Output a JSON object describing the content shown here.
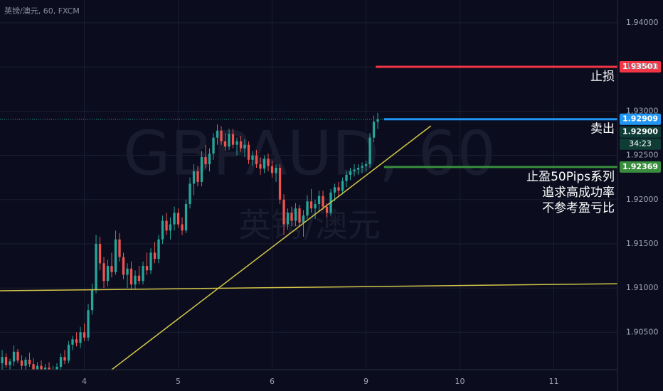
{
  "chart_data": {
    "type": "candlestick",
    "header": "英镑/澳元, 60, FXCM",
    "watermark": "GBPAUD, 60",
    "watermark_sub": "英镑/澳元",
    "up_color": "#26a69a",
    "down_color": "#ef5350",
    "xlim": [
      -0.55,
      157.27
    ],
    "xticks": [
      {
        "value": 21,
        "label": "4"
      },
      {
        "value": 45,
        "label": "5"
      },
      {
        "value": 69,
        "label": "6"
      },
      {
        "value": 93,
        "label": "9"
      },
      {
        "value": 117,
        "label": "10"
      },
      {
        "value": 141,
        "label": "11"
      }
    ],
    "ylim": [
      1.90077,
      1.94257
    ],
    "yticks": [
      {
        "value": 1.905,
        "label": "1.90500"
      },
      {
        "value": 1.91,
        "label": "1.91000"
      },
      {
        "value": 1.915,
        "label": "1.91500"
      },
      {
        "value": 1.92,
        "label": "1.92000"
      },
      {
        "value": 1.925,
        "label": "1.92500"
      },
      {
        "value": 1.93,
        "label": "1.93000"
      },
      {
        "value": 1.935,
        "label": "1.93500"
      },
      {
        "value": 1.94,
        "label": "1.94000"
      }
    ],
    "grid": true,
    "ohlc": [
      [
        1.9015,
        1.903,
        1.9008,
        1.9022
      ],
      [
        1.9022,
        1.9026,
        1.901,
        1.9013
      ],
      [
        1.9013,
        1.902,
        1.9005,
        1.9017
      ],
      [
        1.9017,
        1.9035,
        1.9012,
        1.9028
      ],
      [
        1.9028,
        1.9031,
        1.9015,
        1.9018
      ],
      [
        1.9018,
        1.9024,
        1.9008,
        1.9012
      ],
      [
        1.9012,
        1.9022,
        1.9006,
        1.9019
      ],
      [
        1.9019,
        1.9027,
        1.9011,
        1.9014
      ],
      [
        1.9014,
        1.9021,
        1.9003,
        1.9008
      ],
      [
        1.9008,
        1.9016,
        1.9,
        1.9012
      ],
      [
        1.9012,
        1.9018,
        1.9002,
        1.9005
      ],
      [
        1.9005,
        1.9014,
        1.8998,
        1.901
      ],
      [
        1.901,
        1.9016,
        1.9001,
        1.9004
      ],
      [
        1.9004,
        1.9012,
        1.8996,
        1.9008
      ],
      [
        1.9008,
        1.9015,
        1.9,
        1.9011
      ],
      [
        1.9011,
        1.9026,
        1.9006,
        1.9022
      ],
      [
        1.9022,
        1.903,
        1.9014,
        1.9018
      ],
      [
        1.9018,
        1.904,
        1.9015,
        1.9036
      ],
      [
        1.9036,
        1.9046,
        1.903,
        1.9042
      ],
      [
        1.9042,
        1.905,
        1.9034,
        1.9038
      ],
      [
        1.9038,
        1.9056,
        1.9032,
        1.905
      ],
      [
        1.905,
        1.906,
        1.904,
        1.9044
      ],
      [
        1.9044,
        1.9082,
        1.904,
        1.9075
      ],
      [
        1.9075,
        1.9105,
        1.907,
        1.9098
      ],
      [
        1.9098,
        1.916,
        1.9094,
        1.915
      ],
      [
        1.915,
        1.9158,
        1.912,
        1.9128
      ],
      [
        1.9128,
        1.9135,
        1.91,
        1.9108
      ],
      [
        1.9108,
        1.9132,
        1.9102,
        1.9125
      ],
      [
        1.9125,
        1.914,
        1.9112,
        1.9118
      ],
      [
        1.9118,
        1.9165,
        1.9115,
        1.9155
      ],
      [
        1.9155,
        1.9162,
        1.913,
        1.9135
      ],
      [
        1.9135,
        1.914,
        1.911,
        1.9115
      ],
      [
        1.9115,
        1.9128,
        1.91,
        1.9122
      ],
      [
        1.9122,
        1.913,
        1.9098,
        1.9104
      ],
      [
        1.9104,
        1.912,
        1.9098,
        1.9114
      ],
      [
        1.9114,
        1.9125,
        1.9104,
        1.9108
      ],
      [
        1.9108,
        1.913,
        1.9104,
        1.9125
      ],
      [
        1.9125,
        1.914,
        1.9115,
        1.912
      ],
      [
        1.912,
        1.9145,
        1.9116,
        1.914
      ],
      [
        1.914,
        1.9152,
        1.9128,
        1.9133
      ],
      [
        1.9133,
        1.916,
        1.9128,
        1.9155
      ],
      [
        1.9155,
        1.9182,
        1.915,
        1.9176
      ],
      [
        1.9176,
        1.9185,
        1.916,
        1.9165
      ],
      [
        1.9165,
        1.918,
        1.9155,
        1.9172
      ],
      [
        1.9172,
        1.9192,
        1.9165,
        1.9185
      ],
      [
        1.9185,
        1.919,
        1.9168,
        1.9172
      ],
      [
        1.9172,
        1.918,
        1.916,
        1.9165
      ],
      [
        1.9165,
        1.92,
        1.9162,
        1.9195
      ],
      [
        1.9195,
        1.9225,
        1.919,
        1.9218
      ],
      [
        1.9218,
        1.924,
        1.9205,
        1.9232
      ],
      [
        1.9232,
        1.9238,
        1.9215,
        1.922
      ],
      [
        1.922,
        1.9255,
        1.9215,
        1.9248
      ],
      [
        1.9248,
        1.9262,
        1.9235,
        1.924
      ],
      [
        1.924,
        1.9258,
        1.9232,
        1.9252
      ],
      [
        1.9252,
        1.9275,
        1.9245,
        1.927
      ],
      [
        1.927,
        1.9285,
        1.9262,
        1.9278
      ],
      [
        1.9278,
        1.9283,
        1.9262,
        1.9266
      ],
      [
        1.9266,
        1.9275,
        1.9255,
        1.926
      ],
      [
        1.926,
        1.928,
        1.9256,
        1.9274
      ],
      [
        1.9274,
        1.928,
        1.9258,
        1.9262
      ],
      [
        1.9262,
        1.927,
        1.925,
        1.9266
      ],
      [
        1.9266,
        1.9272,
        1.9254,
        1.9258
      ],
      [
        1.9258,
        1.9268,
        1.9248,
        1.9262
      ],
      [
        1.9262,
        1.9266,
        1.924,
        1.9245
      ],
      [
        1.9245,
        1.9255,
        1.9238,
        1.925
      ],
      [
        1.925,
        1.9256,
        1.9236,
        1.924
      ],
      [
        1.924,
        1.9248,
        1.9228,
        1.9235
      ],
      [
        1.9235,
        1.925,
        1.923,
        1.9246
      ],
      [
        1.9246,
        1.9252,
        1.9232,
        1.9238
      ],
      [
        1.9238,
        1.9244,
        1.9225,
        1.923
      ],
      [
        1.923,
        1.924,
        1.922,
        1.9236
      ],
      [
        1.9236,
        1.924,
        1.9195,
        1.92
      ],
      [
        1.92,
        1.9206,
        1.916,
        1.9172
      ],
      [
        1.9172,
        1.919,
        1.9166,
        1.9185
      ],
      [
        1.9185,
        1.9192,
        1.917,
        1.9176
      ],
      [
        1.9176,
        1.9196,
        1.917,
        1.919
      ],
      [
        1.919,
        1.9194,
        1.917,
        1.9174
      ],
      [
        1.9174,
        1.9188,
        1.9158,
        1.9182
      ],
      [
        1.9182,
        1.9205,
        1.9178,
        1.9198
      ],
      [
        1.9198,
        1.9212,
        1.9185,
        1.919
      ],
      [
        1.919,
        1.92,
        1.9178,
        1.9195
      ],
      [
        1.9195,
        1.921,
        1.9186,
        1.9204
      ],
      [
        1.9204,
        1.921,
        1.9188,
        1.9192
      ],
      [
        1.9192,
        1.9196,
        1.918,
        1.9185
      ],
      [
        1.9185,
        1.9212,
        1.9182,
        1.9208
      ],
      [
        1.9208,
        1.9218,
        1.9198,
        1.9214
      ],
      [
        1.9214,
        1.922,
        1.9204,
        1.921
      ],
      [
        1.921,
        1.9225,
        1.9206,
        1.9221
      ],
      [
        1.9221,
        1.9232,
        1.9214,
        1.9228
      ],
      [
        1.9228,
        1.9236,
        1.9222,
        1.9232
      ],
      [
        1.9232,
        1.924,
        1.9226,
        1.9234
      ],
      [
        1.9234,
        1.924,
        1.9228,
        1.9236
      ],
      [
        1.9236,
        1.9242,
        1.923,
        1.9238
      ],
      [
        1.9238,
        1.9244,
        1.9232,
        1.924
      ],
      [
        1.924,
        1.9275,
        1.9236,
        1.927
      ],
      [
        1.927,
        1.9295,
        1.9265,
        1.9288
      ],
      [
        1.9288,
        1.9298,
        1.928,
        1.92909
      ]
    ],
    "price_line": 1.92909,
    "trendlines": [
      {
        "color": "#d4c548",
        "x": [
          -0.55,
          157.27
        ],
        "y": [
          1.90969,
          1.91049
        ]
      },
      {
        "color": "#d4c548",
        "x": [
          28.0,
          109.6
        ],
        "y": [
          1.90077,
          1.92834
        ]
      }
    ],
    "levels": [
      {
        "value": 1.93501,
        "label": "1.93501",
        "color": "#f23645",
        "x_start": 95.5,
        "notes": [
          "止损"
        ]
      },
      {
        "value": 1.92909,
        "label": "1.92909",
        "color": "#2196f3",
        "x_start": 97.6,
        "notes": [
          "卖出"
        ]
      },
      {
        "value": 1.92369,
        "label": "1.92369",
        "color": "#388e3c",
        "x_start": 97.6,
        "notes": [
          "止盈50Pips系列",
          "追求高成功率",
          "不参考盈亏比"
        ]
      }
    ],
    "bid_label": "1.92900",
    "countdown": "34:23"
  }
}
